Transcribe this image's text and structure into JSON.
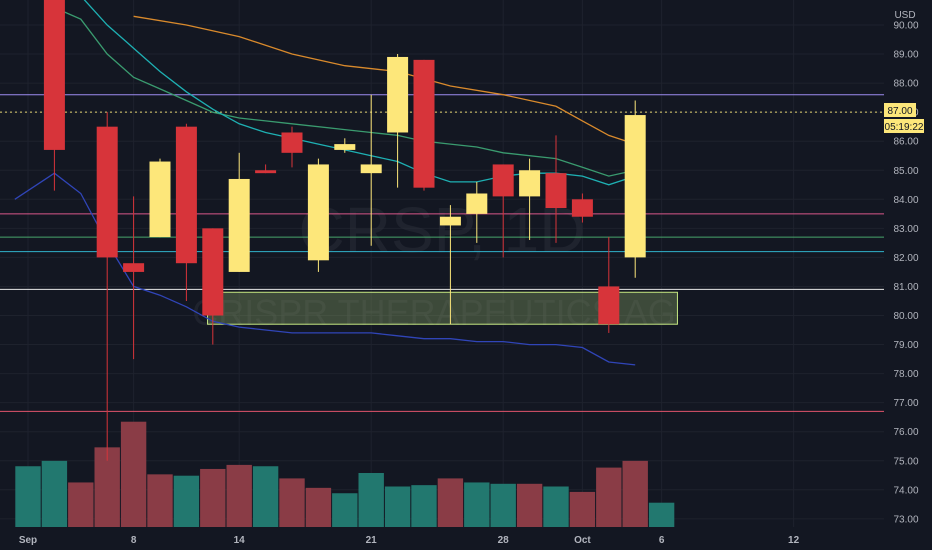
{
  "chart_data": {
    "type": "candlestick",
    "currency": "USD",
    "watermark": {
      "symbol": "CRSP, 1D",
      "name": "CRISPR THERAPEUTICS AG"
    },
    "ylim": [
      72.6,
      91.2
    ],
    "xlim": [
      -0.5,
      32.5
    ],
    "y_ticks": [
      "73.00",
      "74.00",
      "75.00",
      "76.00",
      "77.00",
      "78.00",
      "79.00",
      "80.00",
      "81.00",
      "82.00",
      "83.00",
      "84.00",
      "85.00",
      "86.00",
      "87.00",
      "88.00",
      "89.00",
      "90.00"
    ],
    "x_ticks": [
      {
        "i": 0,
        "label": "Sep"
      },
      {
        "i": 4,
        "label": "8"
      },
      {
        "i": 8,
        "label": "14"
      },
      {
        "i": 13,
        "label": "21"
      },
      {
        "i": 18,
        "label": "28"
      },
      {
        "i": 21,
        "label": "Oct"
      },
      {
        "i": 24,
        "label": "6"
      },
      {
        "i": 29,
        "label": "12"
      }
    ],
    "colors": {
      "up": "#fde77a",
      "down": "#d7343a",
      "vol_up": "#22786f",
      "vol_down": "#8a3c46",
      "ma_orange": "#d98a2c",
      "ma_green": "#3a9b6f",
      "ma_teal": "#1eb0b3",
      "ma_blue": "#3045b8"
    },
    "candles": [
      {
        "i": 1,
        "o": 91.6,
        "h": 92.2,
        "l": 84.3,
        "c": 85.7
      },
      {
        "i": 3,
        "o": 86.5,
        "h": 87.0,
        "l": 75.0,
        "c": 82.0
      },
      {
        "i": 4,
        "o": 81.8,
        "h": 84.1,
        "l": 78.5,
        "c": 81.5
      },
      {
        "i": 5,
        "o": 82.7,
        "h": 85.4,
        "l": 82.7,
        "c": 85.3
      },
      {
        "i": 6,
        "o": 86.5,
        "h": 86.6,
        "l": 80.5,
        "c": 81.8
      },
      {
        "i": 7,
        "o": 83.0,
        "h": 83.0,
        "l": 79.0,
        "c": 80.0
      },
      {
        "i": 8,
        "o": 81.5,
        "h": 85.6,
        "l": 81.5,
        "c": 84.7
      },
      {
        "i": 9,
        "o": 85.0,
        "h": 85.2,
        "l": 84.9,
        "c": 84.9
      },
      {
        "i": 10,
        "o": 86.3,
        "h": 86.5,
        "l": 85.1,
        "c": 85.6
      },
      {
        "i": 11,
        "o": 81.9,
        "h": 85.4,
        "l": 81.5,
        "c": 85.2
      },
      {
        "i": 12,
        "o": 85.7,
        "h": 86.1,
        "l": 85.6,
        "c": 85.9
      },
      {
        "i": 13,
        "o": 84.9,
        "h": 87.6,
        "l": 82.4,
        "c": 85.2
      },
      {
        "i": 14,
        "o": 86.3,
        "h": 89.0,
        "l": 84.4,
        "c": 88.9
      },
      {
        "i": 15,
        "o": 88.8,
        "h": 88.8,
        "l": 84.3,
        "c": 84.4
      },
      {
        "i": 16,
        "o": 83.1,
        "h": 83.8,
        "l": 79.7,
        "c": 83.4
      },
      {
        "i": 17,
        "o": 83.5,
        "h": 84.6,
        "l": 82.5,
        "c": 84.2
      },
      {
        "i": 18,
        "o": 85.2,
        "h": 85.2,
        "l": 82.0,
        "c": 84.1
      },
      {
        "i": 19,
        "o": 84.1,
        "h": 85.4,
        "l": 82.6,
        "c": 85.0
      },
      {
        "i": 20,
        "o": 84.9,
        "h": 86.2,
        "l": 82.5,
        "c": 83.7
      },
      {
        "i": 21,
        "o": 84.0,
        "h": 84.2,
        "l": 83.2,
        "c": 83.4
      },
      {
        "i": 22,
        "o": 81.0,
        "h": 82.7,
        "l": 79.4,
        "c": 79.7
      },
      {
        "i": 23,
        "o": 82.0,
        "h": 87.4,
        "l": 81.3,
        "c": 86.9
      }
    ],
    "volume_max": 1.0,
    "volume": [
      {
        "i": 0,
        "v": 0.45,
        "dir": "up"
      },
      {
        "i": 1,
        "v": 0.49,
        "dir": "up"
      },
      {
        "i": 2,
        "v": 0.33,
        "dir": "down"
      },
      {
        "i": 3,
        "v": 0.59,
        "dir": "down"
      },
      {
        "i": 4,
        "v": 0.78,
        "dir": "down"
      },
      {
        "i": 5,
        "v": 0.39,
        "dir": "down"
      },
      {
        "i": 6,
        "v": 0.38,
        "dir": "up"
      },
      {
        "i": 7,
        "v": 0.43,
        "dir": "down"
      },
      {
        "i": 8,
        "v": 0.46,
        "dir": "down"
      },
      {
        "i": 9,
        "v": 0.45,
        "dir": "up"
      },
      {
        "i": 10,
        "v": 0.36,
        "dir": "down"
      },
      {
        "i": 11,
        "v": 0.29,
        "dir": "down"
      },
      {
        "i": 12,
        "v": 0.25,
        "dir": "up"
      },
      {
        "i": 13,
        "v": 0.4,
        "dir": "up"
      },
      {
        "i": 14,
        "v": 0.3,
        "dir": "up"
      },
      {
        "i": 15,
        "v": 0.31,
        "dir": "up"
      },
      {
        "i": 16,
        "v": 0.36,
        "dir": "down"
      },
      {
        "i": 17,
        "v": 0.33,
        "dir": "up"
      },
      {
        "i": 18,
        "v": 0.32,
        "dir": "up"
      },
      {
        "i": 19,
        "v": 0.32,
        "dir": "down"
      },
      {
        "i": 20,
        "v": 0.3,
        "dir": "up"
      },
      {
        "i": 21,
        "v": 0.26,
        "dir": "down"
      },
      {
        "i": 22,
        "v": 0.44,
        "dir": "down"
      },
      {
        "i": 23,
        "v": 0.49,
        "dir": "down"
      },
      {
        "i": 24,
        "v": 0.18,
        "dir": "up"
      }
    ],
    "moving_averages": [
      {
        "color": "ma_orange",
        "points": [
          [
            4,
            90.3
          ],
          [
            6,
            90.0
          ],
          [
            8,
            89.6
          ],
          [
            10,
            89.0
          ],
          [
            12,
            88.6
          ],
          [
            14,
            88.4
          ],
          [
            16,
            87.9
          ],
          [
            18,
            87.6
          ],
          [
            20,
            87.2
          ],
          [
            21,
            86.7
          ],
          [
            22,
            86.2
          ],
          [
            23,
            85.9
          ]
        ]
      },
      {
        "color": "ma_green",
        "points": [
          [
            1,
            90.6
          ],
          [
            2,
            90.2
          ],
          [
            3,
            89.0
          ],
          [
            4,
            88.2
          ],
          [
            5,
            87.8
          ],
          [
            6,
            87.4
          ],
          [
            7,
            87.0
          ],
          [
            8,
            86.8
          ],
          [
            9,
            86.7
          ],
          [
            10,
            86.6
          ],
          [
            12,
            86.4
          ],
          [
            13,
            86.3
          ],
          [
            14,
            86.2
          ],
          [
            15,
            86.0
          ],
          [
            16,
            85.9
          ],
          [
            17,
            85.8
          ],
          [
            18,
            85.6
          ],
          [
            20,
            85.4
          ],
          [
            21,
            85.1
          ],
          [
            22,
            84.8
          ],
          [
            23,
            85.0
          ]
        ]
      },
      {
        "color": "ma_teal",
        "points": [
          [
            2,
            91.0
          ],
          [
            3,
            90.0
          ],
          [
            4,
            89.2
          ],
          [
            5,
            88.4
          ],
          [
            6,
            87.7
          ],
          [
            7,
            87.1
          ],
          [
            8,
            86.6
          ],
          [
            9,
            86.3
          ],
          [
            10,
            86.1
          ],
          [
            11,
            85.9
          ],
          [
            12,
            85.7
          ],
          [
            13,
            85.5
          ],
          [
            14,
            85.3
          ],
          [
            15,
            84.9
          ],
          [
            16,
            84.6
          ],
          [
            17,
            84.6
          ],
          [
            18,
            84.8
          ],
          [
            19,
            84.9
          ],
          [
            20,
            84.9
          ],
          [
            21,
            84.8
          ],
          [
            22,
            84.5
          ],
          [
            23,
            84.8
          ]
        ]
      },
      {
        "color": "ma_blue",
        "points": [
          [
            -0.5,
            84.0
          ],
          [
            1,
            84.9
          ],
          [
            2,
            84.2
          ],
          [
            3,
            82.5
          ],
          [
            4,
            81.0
          ],
          [
            5,
            80.7
          ],
          [
            6,
            80.3
          ],
          [
            7,
            79.8
          ],
          [
            8,
            79.6
          ],
          [
            9,
            79.5
          ],
          [
            10,
            79.4
          ],
          [
            11,
            79.4
          ],
          [
            12,
            79.4
          ],
          [
            13,
            79.4
          ],
          [
            14,
            79.3
          ],
          [
            15,
            79.2
          ],
          [
            16,
            79.2
          ],
          [
            17,
            79.1
          ],
          [
            18,
            79.1
          ],
          [
            19,
            79.0
          ],
          [
            20,
            79.0
          ],
          [
            21,
            78.9
          ],
          [
            22,
            78.4
          ],
          [
            23,
            78.3
          ]
        ]
      }
    ],
    "hlines": [
      {
        "y": 87.6,
        "color": "#9c8cf0"
      },
      {
        "y": 87.0,
        "color": "#e6d675",
        "dashed": true
      },
      {
        "y": 83.5,
        "color": "#d9578a"
      },
      {
        "y": 82.7,
        "color": "#49a66b"
      },
      {
        "y": 82.2,
        "color": "#30b3cc"
      },
      {
        "y": 80.9,
        "color": "#e8e8e8"
      },
      {
        "y": 76.7,
        "color": "#e0546b"
      }
    ],
    "zone": {
      "i0": 6.8,
      "i1": 24.6,
      "y0": 79.7,
      "y1": 80.8,
      "fill": "#8da866",
      "stroke": "#c6e882"
    },
    "price_badge": {
      "value": "87.00",
      "timer": "05:19:22",
      "y": 87.0
    }
  }
}
